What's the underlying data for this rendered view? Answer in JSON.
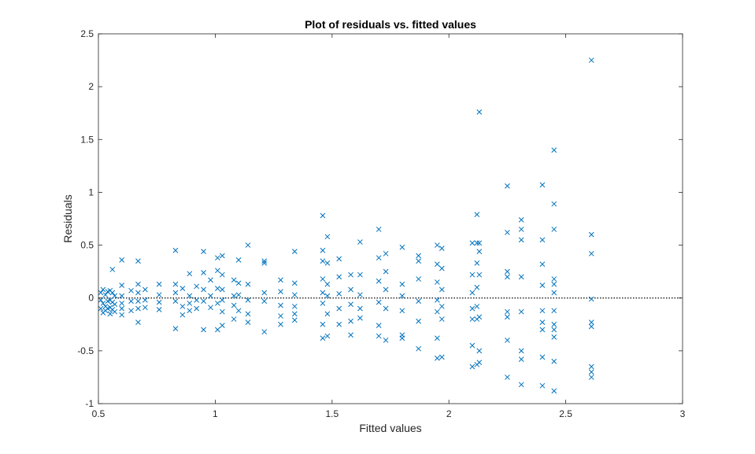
{
  "chart_data": {
    "type": "scatter",
    "title": "Plot of residuals vs. fitted values",
    "xlabel": "Fitted values",
    "ylabel": "Residuals",
    "xlim": [
      0.5,
      3
    ],
    "ylim": [
      -1,
      2.5
    ],
    "xticks": [
      "0.5",
      "1",
      "1.5",
      "2",
      "2.5",
      "3"
    ],
    "yticks": [
      "-1",
      "-0.5",
      "0",
      "0.5",
      "1",
      "1.5",
      "2",
      "2.5"
    ],
    "grid": false,
    "marker": "x",
    "marker_color": "#0072BD",
    "reference_line": {
      "y": 0,
      "style": "dotted",
      "color": "#000000"
    },
    "points": [
      [
        0.51,
        0.05
      ],
      [
        0.51,
        -0.02
      ],
      [
        0.51,
        -0.1
      ],
      [
        0.52,
        0.08
      ],
      [
        0.52,
        -0.05
      ],
      [
        0.52,
        -0.14
      ],
      [
        0.53,
        0.03
      ],
      [
        0.53,
        -0.08
      ],
      [
        0.53,
        -0.12
      ],
      [
        0.54,
        0.06
      ],
      [
        0.54,
        -0.03
      ],
      [
        0.54,
        -0.1
      ],
      [
        0.55,
        0.07
      ],
      [
        0.55,
        -0.02
      ],
      [
        0.55,
        -0.09
      ],
      [
        0.55,
        -0.15
      ],
      [
        0.56,
        0.27
      ],
      [
        0.56,
        0.05
      ],
      [
        0.56,
        -0.04
      ],
      [
        0.56,
        -0.11
      ],
      [
        0.57,
        0.02
      ],
      [
        0.57,
        -0.06
      ],
      [
        0.57,
        -0.13
      ],
      [
        0.6,
        0.36
      ],
      [
        0.6,
        0.12
      ],
      [
        0.6,
        0.02
      ],
      [
        0.6,
        -0.05
      ],
      [
        0.6,
        -0.1
      ],
      [
        0.6,
        -0.16
      ],
      [
        0.64,
        0.07
      ],
      [
        0.64,
        -0.03
      ],
      [
        0.64,
        -0.12
      ],
      [
        0.67,
        0.35
      ],
      [
        0.67,
        0.13
      ],
      [
        0.67,
        0.05
      ],
      [
        0.67,
        -0.03
      ],
      [
        0.67,
        -0.1
      ],
      [
        0.67,
        -0.23
      ],
      [
        0.7,
        0.08
      ],
      [
        0.7,
        -0.02
      ],
      [
        0.7,
        -0.09
      ],
      [
        0.76,
        0.13
      ],
      [
        0.76,
        0.03
      ],
      [
        0.76,
        -0.04
      ],
      [
        0.76,
        -0.11
      ],
      [
        0.83,
        0.45
      ],
      [
        0.83,
        0.13
      ],
      [
        0.83,
        0.05
      ],
      [
        0.83,
        -0.03
      ],
      [
        0.83,
        -0.29
      ],
      [
        0.86,
        0.09
      ],
      [
        0.86,
        -0.08
      ],
      [
        0.86,
        -0.16
      ],
      [
        0.89,
        0.23
      ],
      [
        0.89,
        0.02
      ],
      [
        0.89,
        -0.05
      ],
      [
        0.89,
        -0.12
      ],
      [
        0.92,
        0.11
      ],
      [
        0.92,
        -0.02
      ],
      [
        0.92,
        -0.1
      ],
      [
        0.95,
        0.44
      ],
      [
        0.95,
        0.24
      ],
      [
        0.95,
        0.08
      ],
      [
        0.95,
        -0.03
      ],
      [
        0.95,
        -0.3
      ],
      [
        0.98,
        0.17
      ],
      [
        0.98,
        0.02
      ],
      [
        0.98,
        -0.09
      ],
      [
        1.01,
        0.38
      ],
      [
        1.01,
        0.26
      ],
      [
        1.01,
        0.09
      ],
      [
        1.01,
        -0.05
      ],
      [
        1.01,
        -0.3
      ],
      [
        1.03,
        0.4
      ],
      [
        1.03,
        0.22
      ],
      [
        1.03,
        0.08
      ],
      [
        1.03,
        -0.02
      ],
      [
        1.03,
        -0.13
      ],
      [
        1.03,
        -0.26
      ],
      [
        1.08,
        0.17
      ],
      [
        1.08,
        0.02
      ],
      [
        1.08,
        -0.07
      ],
      [
        1.08,
        -0.2
      ],
      [
        1.1,
        0.36
      ],
      [
        1.1,
        0.14
      ],
      [
        1.1,
        0.03
      ],
      [
        1.1,
        -0.12
      ],
      [
        1.14,
        0.5
      ],
      [
        1.14,
        0.13
      ],
      [
        1.14,
        -0.02
      ],
      [
        1.14,
        -0.15
      ],
      [
        1.14,
        -0.23
      ],
      [
        1.21,
        0.35
      ],
      [
        1.21,
        0.33
      ],
      [
        1.21,
        0.05
      ],
      [
        1.21,
        -0.03
      ],
      [
        1.21,
        -0.32
      ],
      [
        1.28,
        0.17
      ],
      [
        1.28,
        0.06
      ],
      [
        1.28,
        -0.07
      ],
      [
        1.28,
        -0.17
      ],
      [
        1.28,
        -0.25
      ],
      [
        1.34,
        0.44
      ],
      [
        1.34,
        0.14
      ],
      [
        1.34,
        0.03
      ],
      [
        1.34,
        -0.08
      ],
      [
        1.34,
        -0.15
      ],
      [
        1.34,
        -0.21
      ],
      [
        1.46,
        0.78
      ],
      [
        1.46,
        0.45
      ],
      [
        1.46,
        0.35
      ],
      [
        1.46,
        0.18
      ],
      [
        1.46,
        0.05
      ],
      [
        1.46,
        -0.05
      ],
      [
        1.46,
        -0.25
      ],
      [
        1.46,
        -0.38
      ],
      [
        1.48,
        0.58
      ],
      [
        1.48,
        0.33
      ],
      [
        1.48,
        0.13
      ],
      [
        1.48,
        0.02
      ],
      [
        1.48,
        -0.15
      ],
      [
        1.48,
        -0.36
      ],
      [
        1.53,
        0.37
      ],
      [
        1.53,
        0.2
      ],
      [
        1.53,
        0.04
      ],
      [
        1.53,
        -0.1
      ],
      [
        1.53,
        -0.25
      ],
      [
        1.58,
        0.22
      ],
      [
        1.58,
        0.08
      ],
      [
        1.58,
        -0.06
      ],
      [
        1.58,
        -0.22
      ],
      [
        1.58,
        -0.35
      ],
      [
        1.62,
        0.53
      ],
      [
        1.62,
        0.22
      ],
      [
        1.62,
        0.03
      ],
      [
        1.62,
        -0.1
      ],
      [
        1.62,
        -0.19
      ],
      [
        1.7,
        0.65
      ],
      [
        1.7,
        0.38
      ],
      [
        1.7,
        0.16
      ],
      [
        1.7,
        -0.04
      ],
      [
        1.7,
        -0.26
      ],
      [
        1.7,
        -0.36
      ],
      [
        1.73,
        0.42
      ],
      [
        1.73,
        0.25
      ],
      [
        1.73,
        0.08
      ],
      [
        1.73,
        -0.1
      ],
      [
        1.73,
        -0.4
      ],
      [
        1.8,
        0.48
      ],
      [
        1.8,
        0.13
      ],
      [
        1.8,
        0.02
      ],
      [
        1.8,
        -0.12
      ],
      [
        1.8,
        -0.35
      ],
      [
        1.8,
        -0.38
      ],
      [
        1.87,
        0.4
      ],
      [
        1.87,
        0.35
      ],
      [
        1.87,
        0.18
      ],
      [
        1.87,
        -0.03
      ],
      [
        1.87,
        -0.22
      ],
      [
        1.87,
        -0.48
      ],
      [
        1.95,
        0.5
      ],
      [
        1.95,
        0.32
      ],
      [
        1.95,
        0.15
      ],
      [
        1.95,
        -0.02
      ],
      [
        1.95,
        -0.13
      ],
      [
        1.95,
        -0.38
      ],
      [
        1.95,
        -0.57
      ],
      [
        1.97,
        0.47
      ],
      [
        1.97,
        0.28
      ],
      [
        1.97,
        0.08
      ],
      [
        1.97,
        -0.08
      ],
      [
        1.97,
        -0.2
      ],
      [
        1.97,
        -0.56
      ],
      [
        2.1,
        0.52
      ],
      [
        2.1,
        0.22
      ],
      [
        2.1,
        0.05
      ],
      [
        2.1,
        -0.1
      ],
      [
        2.1,
        -0.2
      ],
      [
        2.1,
        -0.45
      ],
      [
        2.1,
        -0.65
      ],
      [
        2.12,
        0.79
      ],
      [
        2.12,
        0.52
      ],
      [
        2.12,
        0.33
      ],
      [
        2.12,
        0.1
      ],
      [
        2.12,
        -0.08
      ],
      [
        2.12,
        -0.2
      ],
      [
        2.12,
        -0.63
      ],
      [
        2.13,
        1.76
      ],
      [
        2.13,
        0.52
      ],
      [
        2.13,
        0.44
      ],
      [
        2.13,
        0.22
      ],
      [
        2.13,
        -0.18
      ],
      [
        2.13,
        -0.5
      ],
      [
        2.13,
        -0.61
      ],
      [
        2.25,
        1.06
      ],
      [
        2.25,
        0.62
      ],
      [
        2.25,
        0.25
      ],
      [
        2.25,
        0.2
      ],
      [
        2.25,
        -0.13
      ],
      [
        2.25,
        -0.18
      ],
      [
        2.25,
        -0.4
      ],
      [
        2.25,
        -0.75
      ],
      [
        2.31,
        0.74
      ],
      [
        2.31,
        0.65
      ],
      [
        2.31,
        0.55
      ],
      [
        2.31,
        0.2
      ],
      [
        2.31,
        -0.13
      ],
      [
        2.31,
        -0.5
      ],
      [
        2.31,
        -0.58
      ],
      [
        2.31,
        -0.82
      ],
      [
        2.4,
        1.07
      ],
      [
        2.4,
        0.55
      ],
      [
        2.4,
        0.32
      ],
      [
        2.4,
        0.12
      ],
      [
        2.4,
        -0.12
      ],
      [
        2.4,
        -0.23
      ],
      [
        2.4,
        -0.3
      ],
      [
        2.4,
        -0.56
      ],
      [
        2.4,
        -0.83
      ],
      [
        2.45,
        1.4
      ],
      [
        2.45,
        0.89
      ],
      [
        2.45,
        0.65
      ],
      [
        2.45,
        0.18
      ],
      [
        2.45,
        0.13
      ],
      [
        2.45,
        0.05
      ],
      [
        2.45,
        -0.12
      ],
      [
        2.45,
        -0.25
      ],
      [
        2.45,
        -0.3
      ],
      [
        2.45,
        -0.37
      ],
      [
        2.45,
        -0.6
      ],
      [
        2.45,
        -0.88
      ],
      [
        2.61,
        2.25
      ],
      [
        2.61,
        0.6
      ],
      [
        2.61,
        0.42
      ],
      [
        2.61,
        -0.01
      ],
      [
        2.61,
        -0.23
      ],
      [
        2.61,
        -0.27
      ],
      [
        2.61,
        -0.65
      ],
      [
        2.61,
        -0.7
      ],
      [
        2.61,
        -0.75
      ]
    ]
  }
}
